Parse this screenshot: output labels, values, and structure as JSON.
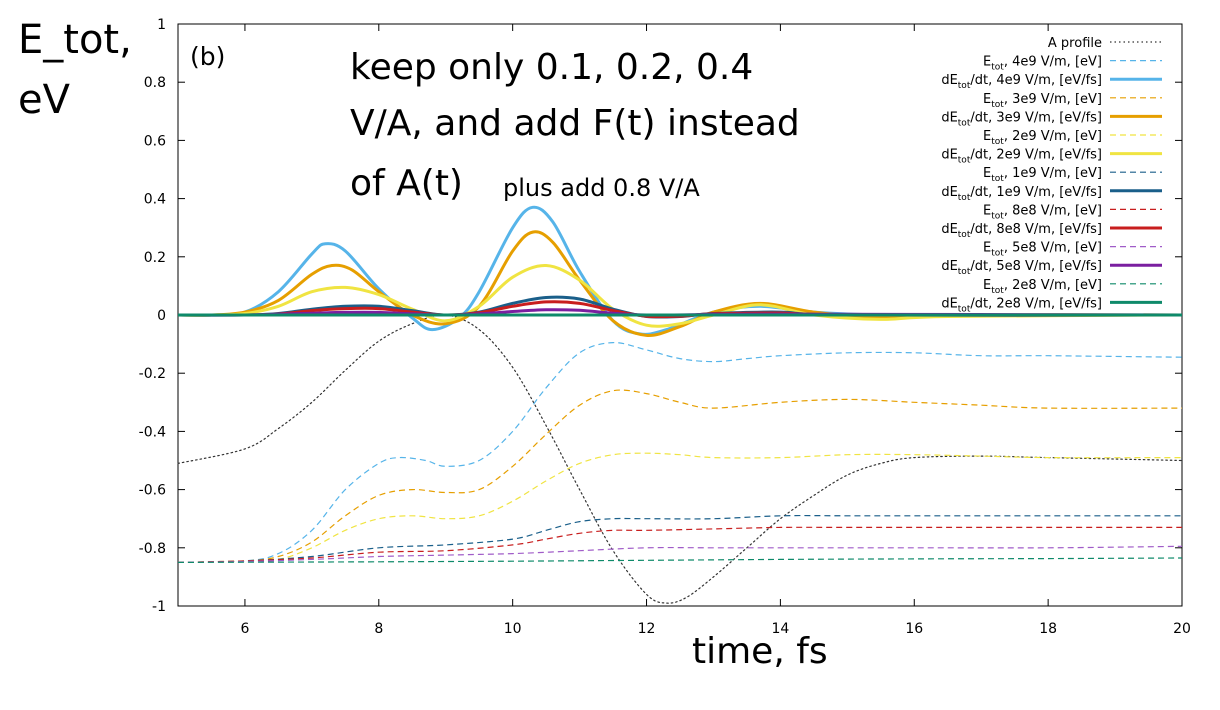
{
  "figure": {
    "panel_label": "(b)",
    "ylabel_line1": "E_tot,",
    "ylabel_line2": "eV",
    "xlabel": "time, fs",
    "note_lines": [
      "keep only 0.1, 0.2, 0.4",
      "V/A, and add F(t) instead",
      "of A(t)"
    ],
    "note_small": "plus add 0.8 V/A"
  },
  "chart_data": {
    "type": "line",
    "xlim": [
      5,
      20
    ],
    "ylim": [
      -1,
      1
    ],
    "x_ticks": [
      6,
      8,
      10,
      12,
      14,
      16,
      18,
      20
    ],
    "y_ticks": [
      -1,
      -0.8,
      -0.6,
      -0.4,
      -0.2,
      0,
      0.2,
      0.4,
      0.6,
      0.8,
      1
    ],
    "x_tick_labels": [
      "6",
      "8",
      "10",
      "12",
      "14",
      "16",
      "18",
      "20"
    ],
    "y_tick_labels": [
      "-1",
      "-0.8",
      "-0.6",
      "-0.4",
      "-0.2",
      "0",
      "0.2",
      "0.4",
      "0.6",
      "0.8",
      "1"
    ],
    "grid": false,
    "legend_position": "top-right",
    "series": [
      {
        "name": "A profile",
        "style": "dotted",
        "color": "#333333",
        "x": [
          5,
          6,
          6.5,
          7,
          7.5,
          8,
          8.5,
          9,
          9.5,
          10,
          10.5,
          11,
          11.5,
          12,
          12.3,
          12.6,
          13,
          13.5,
          14,
          14.5,
          15,
          15.5,
          16,
          17,
          18,
          20
        ],
        "y": [
          -0.51,
          -0.46,
          -0.39,
          -0.3,
          -0.19,
          -0.09,
          -0.03,
          0,
          -0.05,
          -0.18,
          -0.38,
          -0.6,
          -0.81,
          -0.96,
          -0.99,
          -0.97,
          -0.9,
          -0.8,
          -0.7,
          -0.62,
          -0.55,
          -0.51,
          -0.49,
          -0.485,
          -0.49,
          -0.5
        ]
      },
      {
        "name": "E_tot, 4e9 V/m, [eV]",
        "style": "dashed",
        "color": "#56b4e9",
        "x": [
          5,
          6,
          6.5,
          7,
          7.5,
          8,
          8.3,
          8.7,
          9,
          9.5,
          10,
          10.5,
          11,
          11.5,
          12,
          12.5,
          13,
          13.5,
          14,
          15,
          16,
          17,
          18,
          20
        ],
        "y": [
          -0.85,
          -0.845,
          -0.82,
          -0.74,
          -0.6,
          -0.51,
          -0.49,
          -0.5,
          -0.52,
          -0.5,
          -0.4,
          -0.25,
          -0.13,
          -0.095,
          -0.12,
          -0.15,
          -0.16,
          -0.15,
          -0.14,
          -0.13,
          -0.13,
          -0.14,
          -0.14,
          -0.145
        ]
      },
      {
        "name": "dE_tot/dt, 4e9 V/m, [eV/fs]",
        "style": "solid",
        "color": "#56b4e9",
        "x": [
          5,
          5.5,
          6,
          6.5,
          7,
          7.2,
          7.5,
          8,
          8.5,
          8.8,
          9.2,
          9.5,
          10,
          10.3,
          10.6,
          11,
          11.5,
          11.9,
          12.3,
          13,
          13.7,
          14.5,
          15.5,
          16.5,
          20
        ],
        "y": [
          0,
          0,
          0.01,
          0.08,
          0.21,
          0.245,
          0.22,
          0.09,
          -0.01,
          -0.05,
          -0.01,
          0.08,
          0.3,
          0.37,
          0.32,
          0.15,
          -0.02,
          -0.065,
          -0.05,
          0.01,
          0.03,
          0.01,
          0,
          0,
          0
        ]
      },
      {
        "name": "E_tot, 3e9 V/m, [eV]",
        "style": "dashed",
        "color": "#e69f00",
        "x": [
          5,
          6,
          6.5,
          7,
          7.5,
          8,
          8.5,
          9,
          9.5,
          10,
          10.5,
          11,
          11.5,
          12,
          12.5,
          13,
          14,
          15,
          16,
          17,
          18,
          20
        ],
        "y": [
          -0.85,
          -0.845,
          -0.83,
          -0.78,
          -0.69,
          -0.62,
          -0.6,
          -0.61,
          -0.6,
          -0.52,
          -0.41,
          -0.31,
          -0.26,
          -0.27,
          -0.3,
          -0.32,
          -0.3,
          -0.29,
          -0.3,
          -0.31,
          -0.32,
          -0.32
        ]
      },
      {
        "name": "dE_tot/dt, 3e9 V/m, [eV/fs]",
        "style": "solid",
        "color": "#e69f00",
        "x": [
          5,
          5.5,
          6,
          6.5,
          7,
          7.3,
          7.6,
          8,
          8.5,
          9,
          9.5,
          10,
          10.3,
          10.6,
          11,
          11.5,
          12,
          12.5,
          13,
          13.7,
          14.5,
          15.5,
          16.5,
          20
        ],
        "y": [
          0,
          0,
          0.01,
          0.05,
          0.14,
          0.17,
          0.155,
          0.08,
          0,
          -0.03,
          0.03,
          0.22,
          0.285,
          0.25,
          0.12,
          -0.02,
          -0.07,
          -0.04,
          0.01,
          0.04,
          0.01,
          -0.01,
          0,
          0
        ]
      },
      {
        "name": "E_tot, 2e9 V/m, [eV]",
        "style": "dashed",
        "color": "#f0e442",
        "x": [
          5,
          6,
          6.5,
          7,
          7.5,
          8,
          8.5,
          9,
          9.5,
          10,
          10.5,
          11,
          11.5,
          12,
          12.5,
          13,
          14,
          15,
          16,
          17,
          18,
          20
        ],
        "y": [
          -0.85,
          -0.845,
          -0.84,
          -0.8,
          -0.74,
          -0.7,
          -0.69,
          -0.7,
          -0.69,
          -0.64,
          -0.57,
          -0.51,
          -0.48,
          -0.475,
          -0.48,
          -0.49,
          -0.49,
          -0.48,
          -0.48,
          -0.485,
          -0.49,
          -0.49
        ]
      },
      {
        "name": "dE_tot/dt, 2e9 V/m, [eV/fs]",
        "style": "solid",
        "color": "#f0e442",
        "x": [
          5,
          5.5,
          6,
          6.5,
          7,
          7.5,
          8,
          8.5,
          9,
          9.5,
          10,
          10.5,
          11,
          11.5,
          12,
          12.5,
          13,
          13.7,
          14.5,
          15.5,
          16.5,
          20
        ],
        "y": [
          0,
          0,
          0.005,
          0.03,
          0.08,
          0.095,
          0.07,
          0.02,
          -0.02,
          0.03,
          0.13,
          0.17,
          0.12,
          0.02,
          -0.035,
          -0.03,
          0,
          0.035,
          0,
          -0.015,
          -0.005,
          0
        ]
      },
      {
        "name": "E_tot, 1e9 V/m, [eV]",
        "style": "dashed",
        "color": "#1a5f8a",
        "x": [
          5,
          6,
          7,
          8,
          9,
          10,
          10.5,
          11,
          11.5,
          12,
          13,
          14,
          15,
          16,
          18,
          20
        ],
        "y": [
          -0.85,
          -0.845,
          -0.83,
          -0.8,
          -0.79,
          -0.77,
          -0.74,
          -0.71,
          -0.7,
          -0.7,
          -0.7,
          -0.69,
          -0.69,
          -0.69,
          -0.69,
          -0.69
        ]
      },
      {
        "name": "dE_tot/dt, 1e9 V/m, [eV/fs]",
        "style": "solid",
        "color": "#1a5f8a",
        "x": [
          5,
          6,
          6.5,
          7,
          7.5,
          8,
          8.5,
          9,
          9.5,
          10,
          10.5,
          11,
          11.5,
          12,
          12.5,
          13,
          14,
          15,
          20
        ],
        "y": [
          0,
          0,
          0.005,
          0.02,
          0.03,
          0.03,
          0.015,
          0,
          0.01,
          0.04,
          0.06,
          0.055,
          0.02,
          -0.005,
          -0.005,
          0.005,
          0.01,
          0,
          0
        ]
      },
      {
        "name": "E_tot, 8e8 V/m, [eV]",
        "style": "dashed",
        "color": "#c81e1e",
        "x": [
          5,
          6,
          7,
          8,
          9,
          10,
          10.5,
          11,
          11.5,
          12,
          13,
          14,
          15,
          16,
          18,
          20
        ],
        "y": [
          -0.85,
          -0.845,
          -0.835,
          -0.815,
          -0.81,
          -0.79,
          -0.77,
          -0.75,
          -0.74,
          -0.74,
          -0.735,
          -0.73,
          -0.73,
          -0.73,
          -0.73,
          -0.73
        ]
      },
      {
        "name": "dE_tot/dt, 8e8 V/m, [eV/fs]",
        "style": "solid",
        "color": "#c81e1e",
        "x": [
          5,
          6,
          6.5,
          7,
          7.5,
          8,
          8.5,
          9,
          9.5,
          10,
          10.5,
          11,
          11.5,
          12,
          12.5,
          13,
          14,
          15,
          20
        ],
        "y": [
          0,
          0,
          0.003,
          0.015,
          0.022,
          0.022,
          0.01,
          0,
          0.008,
          0.03,
          0.045,
          0.04,
          0.015,
          -0.004,
          -0.004,
          0.004,
          0.007,
          0,
          0
        ]
      },
      {
        "name": "E_tot, 5e8 V/m, [eV]",
        "style": "dashed",
        "color": "#a05cc8",
        "x": [
          5,
          6,
          7,
          8,
          9,
          10,
          11,
          12,
          13,
          14,
          16,
          18,
          20
        ],
        "y": [
          -0.85,
          -0.847,
          -0.84,
          -0.83,
          -0.825,
          -0.82,
          -0.81,
          -0.8,
          -0.8,
          -0.8,
          -0.8,
          -0.8,
          -0.795
        ]
      },
      {
        "name": "dE_tot/dt, 5e8 V/m, [eV/fs]",
        "style": "solid",
        "color": "#7a1fa0",
        "x": [
          5,
          6,
          7,
          7.5,
          8,
          8.5,
          9,
          9.5,
          10,
          10.5,
          11,
          11.5,
          12,
          13,
          14,
          20
        ],
        "y": [
          0,
          0,
          0.006,
          0.009,
          0.009,
          0.004,
          0,
          0.004,
          0.012,
          0.018,
          0.016,
          0.006,
          0,
          0.002,
          0.003,
          0
        ]
      },
      {
        "name": "E_tot, 2e8 V/m, [eV]",
        "style": "dashed",
        "color": "#0e8a6a",
        "x": [
          5,
          8,
          10,
          12,
          14,
          16,
          18,
          20
        ],
        "y": [
          -0.85,
          -0.848,
          -0.846,
          -0.843,
          -0.84,
          -0.838,
          -0.837,
          -0.835
        ]
      },
      {
        "name": "dE_tot/dt, 2e8 V/m, [eV/fs]",
        "style": "solid",
        "color": "#0e8a6a",
        "x": [
          5,
          20
        ],
        "y": [
          0,
          0
        ]
      }
    ],
    "legend": [
      {
        "label": "A profile",
        "sub": "",
        "style": "dotted",
        "color": "#333333"
      },
      {
        "label": "E",
        "sub": "tot",
        "rest": ", 4e9 V/m, [eV]",
        "style": "dashed",
        "color": "#56b4e9"
      },
      {
        "label": "dE",
        "sub": "tot",
        "rest": "/dt, 4e9 V/m, [eV/fs]",
        "style": "solid",
        "color": "#56b4e9"
      },
      {
        "label": "E",
        "sub": "tot",
        "rest": ", 3e9 V/m, [eV]",
        "style": "dashed",
        "color": "#e69f00"
      },
      {
        "label": "dE",
        "sub": "tot",
        "rest": "/dt, 3e9 V/m, [eV/fs]",
        "style": "solid",
        "color": "#e69f00"
      },
      {
        "label": "E",
        "sub": "tot",
        "rest": ", 2e9 V/m, [eV]",
        "style": "dashed",
        "color": "#f0e442"
      },
      {
        "label": "dE",
        "sub": "tot",
        "rest": "/dt, 2e9 V/m, [eV/fs]",
        "style": "solid",
        "color": "#f0e442"
      },
      {
        "label": "E",
        "sub": "tot",
        "rest": ", 1e9 V/m, [eV]",
        "style": "dashed",
        "color": "#1a5f8a"
      },
      {
        "label": "dE",
        "sub": "tot",
        "rest": "/dt, 1e9 V/m, [eV/fs]",
        "style": "solid",
        "color": "#1a5f8a"
      },
      {
        "label": "E",
        "sub": "tot",
        "rest": ", 8e8 V/m, [eV]",
        "style": "dashed",
        "color": "#c81e1e"
      },
      {
        "label": "dE",
        "sub": "tot",
        "rest": "/dt, 8e8 V/m, [eV/fs]",
        "style": "solid",
        "color": "#c81e1e"
      },
      {
        "label": "E",
        "sub": "tot",
        "rest": ", 5e8 V/m, [eV]",
        "style": "dashed",
        "color": "#a05cc8"
      },
      {
        "label": "dE",
        "sub": "tot",
        "rest": "/dt, 5e8 V/m, [eV/fs]",
        "style": "solid",
        "color": "#7a1fa0"
      },
      {
        "label": "E",
        "sub": "tot",
        "rest": ", 2e8 V/m, [eV]",
        "style": "dashed",
        "color": "#0e8a6a"
      },
      {
        "label": "dE",
        "sub": "tot",
        "rest": "/dt, 2e8 V/m, [eV/fs]",
        "style": "solid",
        "color": "#0e8a6a"
      }
    ]
  }
}
